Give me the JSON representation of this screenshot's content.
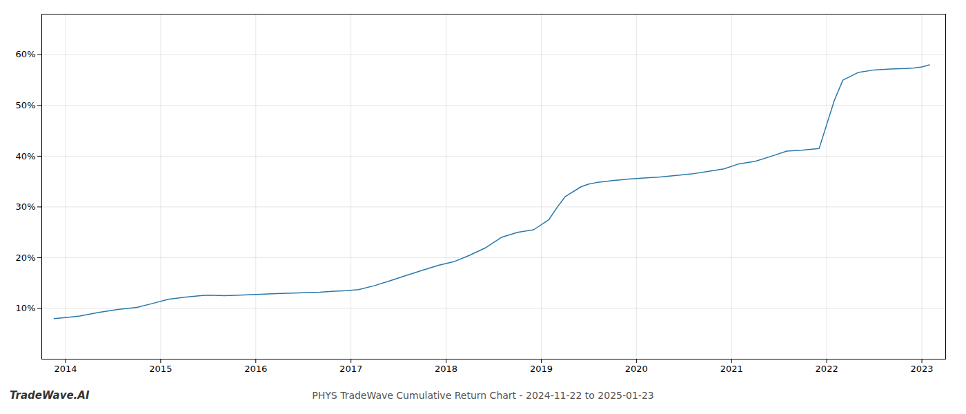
{
  "chart_data": {
    "type": "line",
    "title": "PHYS TradeWave Cumulative Return Chart - 2024-11-22 to 2025-01-23",
    "annotations": [
      "TradeWave.AI"
    ],
    "color": "#2878a8",
    "grid": true,
    "x": [
      2013.88,
      2014.0,
      2014.15,
      2014.35,
      2014.55,
      2014.75,
      2014.92,
      2015.08,
      2015.25,
      2015.42,
      2015.5,
      2015.67,
      2015.83,
      2015.95,
      2016.05,
      2016.17,
      2016.33,
      2016.5,
      2016.67,
      2016.83,
      2016.95,
      2017.08,
      2017.25,
      2017.42,
      2017.58,
      2017.75,
      2017.92,
      2018.08,
      2018.25,
      2018.42,
      2018.58,
      2018.75,
      2018.92,
      2019.08,
      2019.17,
      2019.25,
      2019.42,
      2019.5,
      2019.58,
      2019.75,
      2019.92,
      2020.08,
      2020.25,
      2020.42,
      2020.58,
      2020.75,
      2020.92,
      2021.08,
      2021.25,
      2021.42,
      2021.58,
      2021.75,
      2021.92,
      2022.08,
      2022.17,
      2022.33,
      2022.5,
      2022.67,
      2022.83,
      2022.92,
      2023.0,
      2023.08
    ],
    "values": [
      8.0,
      8.2,
      8.5,
      9.2,
      9.8,
      10.2,
      11.0,
      11.8,
      12.2,
      12.5,
      12.6,
      12.5,
      12.6,
      12.7,
      12.8,
      12.9,
      13.0,
      13.1,
      13.2,
      13.4,
      13.5,
      13.7,
      14.5,
      15.5,
      16.5,
      17.5,
      18.5,
      19.2,
      20.5,
      22.0,
      24.0,
      25.0,
      25.5,
      27.5,
      30.0,
      32.0,
      34.0,
      34.5,
      34.8,
      35.2,
      35.5,
      35.7,
      35.9,
      36.2,
      36.5,
      37.0,
      37.5,
      38.5,
      39.0,
      40.0,
      41.0,
      41.2,
      41.5,
      51.0,
      55.0,
      56.5,
      57.0,
      57.2,
      57.3,
      57.4,
      57.6,
      58.0
    ],
    "xlim": [
      2013.75,
      2023.25
    ],
    "ylim": [
      0,
      68
    ],
    "xticks": [
      2014,
      2015,
      2016,
      2017,
      2018,
      2019,
      2020,
      2021,
      2022,
      2023
    ],
    "yticks": [
      {
        "value": 10,
        "label": "10%"
      },
      {
        "value": 20,
        "label": "20%"
      },
      {
        "value": 30,
        "label": "30%"
      },
      {
        "value": 40,
        "label": "40%"
      },
      {
        "value": 50,
        "label": "50%"
      },
      {
        "value": 60,
        "label": "60%"
      }
    ]
  }
}
